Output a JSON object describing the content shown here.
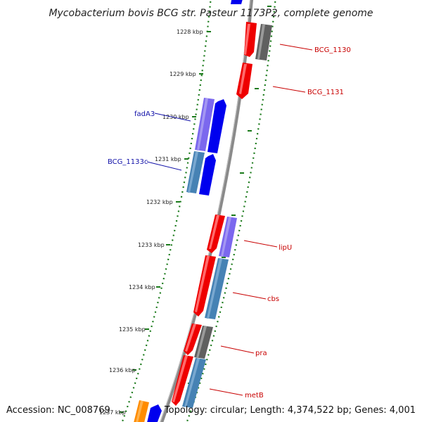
{
  "title": "Mycobacterium bovis BCG str. Pasteur 1173P2, complete genome",
  "accession": "Accession: NC_008769",
  "topology": "Topology: circular; Length: 4,374,522 bp; Genes: 4,001",
  "kbp_ticks": [
    {
      "label": "1228 kbp"
    },
    {
      "label": "1229 kbp"
    },
    {
      "label": "1230 kbp"
    },
    {
      "label": "1231 kbp"
    },
    {
      "label": "1232 kbp"
    },
    {
      "label": "1233 kbp"
    },
    {
      "label": "1234 kbp"
    },
    {
      "label": "1235 kbp"
    },
    {
      "label": "1236 kbp"
    },
    {
      "label": "1237 kbp"
    }
  ],
  "gene_labels_left": [
    {
      "name": "fadA3"
    },
    {
      "name": "BCG_1133c"
    }
  ],
  "gene_labels_right": [
    {
      "name": "BCG_1130"
    },
    {
      "name": "BCG_1131"
    },
    {
      "name": "lipU"
    },
    {
      "name": "cbs"
    },
    {
      "name": "pra"
    },
    {
      "name": "metB"
    }
  ],
  "colors": {
    "red": "#ee0000",
    "blue": "#0000ee",
    "steel_blue": "#4682b4",
    "purple": "#7b68ee",
    "gray": "#606060",
    "orange": "#ff8c00",
    "backbone": "#888888",
    "dotted_track": "#1a7a1a",
    "left_label": "#1010a8",
    "right_label": "#c80000"
  }
}
